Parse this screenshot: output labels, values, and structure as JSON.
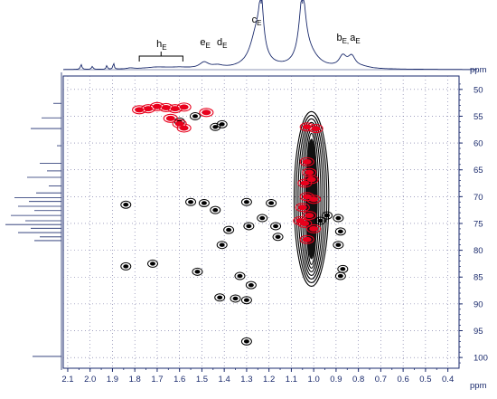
{
  "chart_data": {
    "type": "scatter",
    "title": "",
    "x_unit": "ppm",
    "y_unit": "ppm",
    "xlim": [
      2.12,
      0.35
    ],
    "ylim": [
      47.5,
      102
    ],
    "x_ticks": [
      "2.1",
      "2.0",
      "1.9",
      "1.8",
      "1.7",
      "1.6",
      "1.5",
      "1.4",
      "1.3",
      "1.2",
      "1.1",
      "1.0",
      "0.9",
      "0.8",
      "0.7",
      "0.6",
      "0.5",
      "0.4"
    ],
    "y_ticks": [
      "50",
      "55",
      "60",
      "65",
      "70",
      "75",
      "80",
      "85",
      "90",
      "95",
      "100"
    ],
    "grid": "dotted",
    "colors": {
      "positive": "#e8001c",
      "negative": "#000000",
      "axis": "#1a2a6c",
      "grid": "#6a6a9a"
    },
    "peak_labels": [
      {
        "id": "h",
        "main": "h",
        "sub": "E",
        "x": 1.68
      },
      {
        "id": "e",
        "main": "e",
        "sub": "E",
        "x": 1.485
      },
      {
        "id": "d",
        "main": "d",
        "sub": "E",
        "x": 1.41
      },
      {
        "id": "c",
        "main": "c",
        "sub": "E",
        "x": 1.255
      },
      {
        "id": "b",
        "main": "b",
        "sub": "E",
        "x": 0.87,
        "sep": ","
      },
      {
        "id": "a",
        "main": "a",
        "sub": "E",
        "x": 0.815
      }
    ],
    "series": [
      {
        "name": "",
        "color": "red",
        "points": [
          [
            1.78,
            53.8
          ],
          [
            1.74,
            53.6
          ],
          [
            1.7,
            53.2
          ],
          [
            1.66,
            53.4
          ],
          [
            1.62,
            53.6
          ],
          [
            1.58,
            53.3
          ],
          [
            1.64,
            55.4
          ],
          [
            1.6,
            56.4
          ],
          [
            1.58,
            57.2
          ],
          [
            1.48,
            54.3
          ],
          [
            1.03,
            57.0
          ],
          [
            0.99,
            57.3
          ],
          [
            1.03,
            63.5
          ],
          [
            1.02,
            65.5
          ],
          [
            1.04,
            67.5
          ],
          [
            1.01,
            66.8
          ],
          [
            1.03,
            70.0
          ],
          [
            1.05,
            72.0
          ],
          [
            1.02,
            73.5
          ],
          [
            1.04,
            75.0
          ],
          [
            1.0,
            76.0
          ],
          [
            1.03,
            78.0
          ],
          [
            1.06,
            74.5
          ],
          [
            1.0,
            70.5
          ]
        ]
      },
      {
        "name": "",
        "color": "black",
        "points": [
          [
            1.53,
            55.0
          ],
          [
            1.6,
            56.0
          ],
          [
            1.44,
            57.0
          ],
          [
            1.41,
            56.5
          ],
          [
            1.84,
            71.5
          ],
          [
            1.55,
            71.0
          ],
          [
            1.49,
            71.2
          ],
          [
            1.44,
            72.5
          ],
          [
            1.3,
            71.0
          ],
          [
            1.19,
            71.2
          ],
          [
            1.38,
            76.2
          ],
          [
            1.29,
            75.5
          ],
          [
            1.23,
            74.0
          ],
          [
            1.17,
            75.5
          ],
          [
            0.94,
            73.5
          ],
          [
            0.97,
            74.5
          ],
          [
            1.16,
            77.5
          ],
          [
            1.41,
            79.0
          ],
          [
            0.89,
            74.0
          ],
          [
            0.88,
            76.5
          ],
          [
            0.89,
            79.0
          ],
          [
            1.72,
            82.5
          ],
          [
            1.84,
            83.0
          ],
          [
            1.52,
            84.0
          ],
          [
            0.87,
            83.5
          ],
          [
            0.88,
            84.8
          ],
          [
            1.33,
            84.8
          ],
          [
            1.42,
            88.8
          ],
          [
            1.35,
            89.0
          ],
          [
            1.3,
            89.3
          ],
          [
            1.28,
            86.5
          ],
          [
            1.3,
            97.0
          ]
        ]
      }
    ],
    "diagonal_band": {
      "color": "black",
      "x": [
        1.06,
        0.96
      ],
      "y_range": [
        57.5,
        82.0
      ]
    }
  }
}
